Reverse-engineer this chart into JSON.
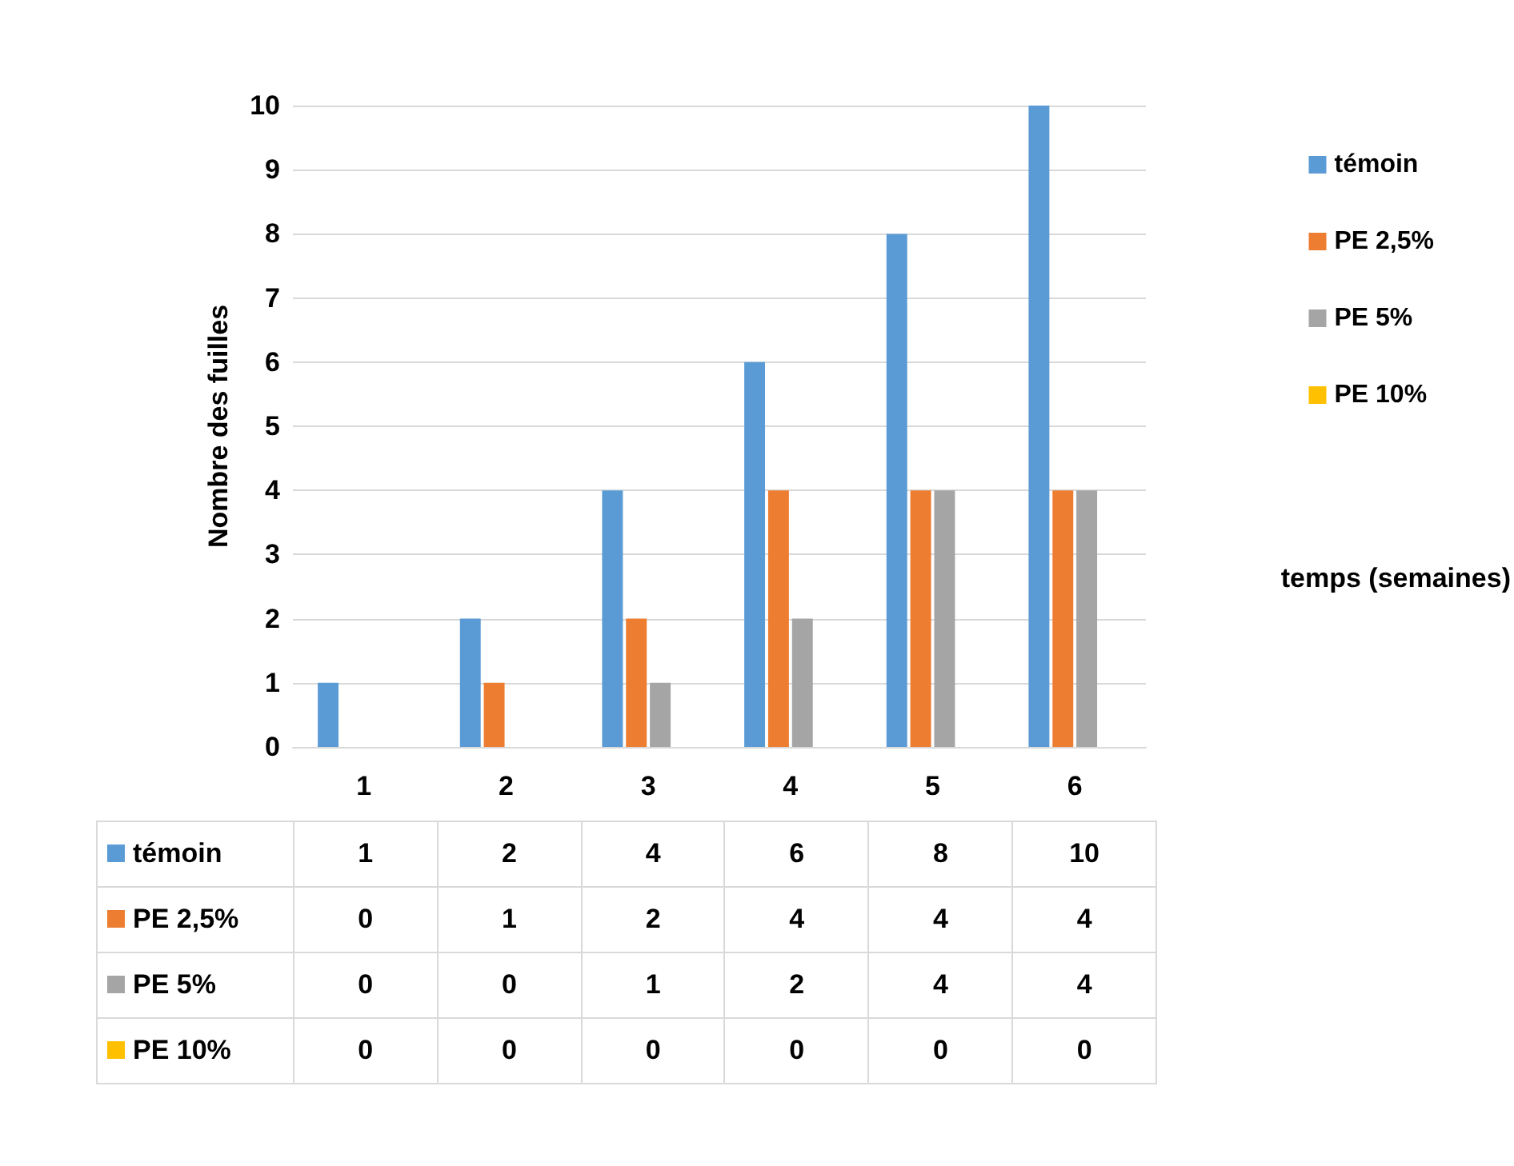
{
  "chart_data": {
    "type": "bar",
    "xlabel": "temps (semaines)",
    "ylabel": "Nombre des fuilles",
    "categories": [
      "1",
      "2",
      "3",
      "4",
      "5",
      "6"
    ],
    "series": [
      {
        "name": "témoin",
        "color": "#5b9bd5",
        "values": [
          1,
          2,
          4,
          6,
          8,
          10
        ]
      },
      {
        "name": "PE 2,5%",
        "color": "#ed7d31",
        "values": [
          0,
          1,
          2,
          4,
          4,
          4
        ]
      },
      {
        "name": "PE 5%",
        "color": "#a5a5a5",
        "values": [
          0,
          0,
          1,
          2,
          4,
          4
        ]
      },
      {
        "name": "PE 10%",
        "color": "#ffc000",
        "values": [
          0,
          0,
          0,
          0,
          0,
          0
        ]
      }
    ],
    "ylim": [
      0,
      10
    ],
    "yticks": [
      0,
      1,
      2,
      3,
      4,
      5,
      6,
      7,
      8,
      9,
      10
    ],
    "grid": "y",
    "legend": "right",
    "data_labels": true
  }
}
